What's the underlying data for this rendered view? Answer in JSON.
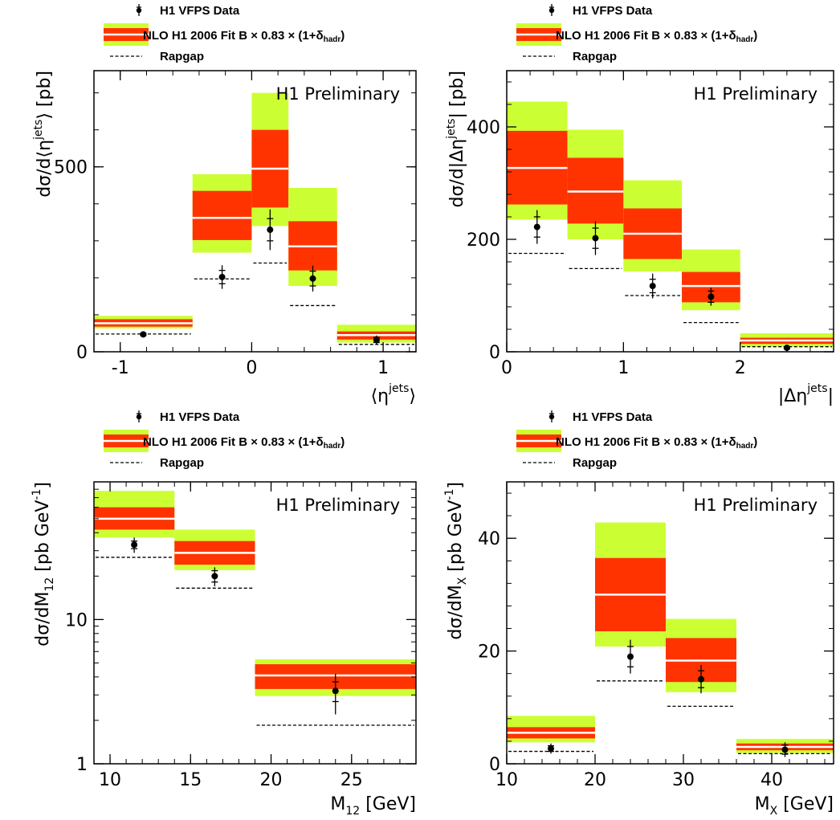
{
  "legend": {
    "data_label": "H1 VFPS Data",
    "nlo_label_main": "NLO H1 2006 Fit B × 0.83 × (1+δ",
    "nlo_label_sub": "hadr",
    "nlo_label_close": ")",
    "rapgap_label": "Rapgap"
  },
  "colors": {
    "scale_band": "#ccff33",
    "pdf_band": "#ff3300",
    "central_line": "#ffffff",
    "data_marker": "#000000"
  },
  "chart_data": [
    {
      "type": "bar",
      "id": "eta-mean",
      "annotation": "H1 Preliminary",
      "ylabel": {
        "main": "dσ/d",
        "left": "⟨η",
        "sup": "jets",
        "right": "⟩ [pb]"
      },
      "xlabel": {
        "left": "⟨η",
        "sup": "jets",
        "right": "⟩"
      },
      "xlim": [
        -1.2,
        1.25
      ],
      "ylim": [
        0,
        760
      ],
      "log_y": false,
      "x_major_ticks": [
        -1,
        0,
        1
      ],
      "y_major_ticks": [
        0,
        500
      ],
      "x_tick_labels": [
        "-1",
        "0",
        "1"
      ],
      "y_tick_labels": [
        "0",
        "500"
      ],
      "bins": [
        {
          "low": -1.2,
          "high": -0.45,
          "nlo": 77,
          "pdf_lo": 68,
          "pdf_hi": 88,
          "scale_lo": 63,
          "scale_hi": 97,
          "rapgap": 48,
          "data": 47,
          "stat": 3,
          "tot": 5
        },
        {
          "low": -0.45,
          "high": 0.0,
          "nlo": 362,
          "pdf_lo": 302,
          "pdf_hi": 435,
          "scale_lo": 268,
          "scale_hi": 480,
          "rapgap": 197,
          "data": 202,
          "stat": 18,
          "tot": 32
        },
        {
          "low": 0.0,
          "high": 0.28,
          "nlo": 495,
          "pdf_lo": 390,
          "pdf_hi": 600,
          "scale_lo": 340,
          "scale_hi": 700,
          "rapgap": 240,
          "data": 330,
          "stat": 30,
          "tot": 55
        },
        {
          "low": 0.28,
          "high": 0.65,
          "nlo": 285,
          "pdf_lo": 220,
          "pdf_hi": 353,
          "scale_lo": 178,
          "scale_hi": 443,
          "rapgap": 125,
          "data": 198,
          "stat": 20,
          "tot": 35
        },
        {
          "low": 0.65,
          "high": 1.25,
          "nlo": 45,
          "pdf_lo": 33,
          "pdf_hi": 55,
          "scale_lo": 25,
          "scale_hi": 73,
          "rapgap": 20,
          "data": 32,
          "stat": 7,
          "tot": 12
        }
      ]
    },
    {
      "type": "bar",
      "id": "delta-eta",
      "annotation": "H1 Preliminary",
      "ylabel": {
        "main": "dσ/d",
        "left": "|Δη",
        "sup": "jets",
        "right": "| [pb]"
      },
      "xlabel": {
        "left": "|Δη",
        "sup": "jets",
        "right": "|"
      },
      "xlim": [
        0,
        2.8
      ],
      "ylim": [
        0,
        500
      ],
      "log_y": false,
      "x_major_ticks": [
        0,
        1,
        2
      ],
      "y_major_ticks": [
        0,
        200,
        400
      ],
      "x_tick_labels": [
        "0",
        "1",
        "2"
      ],
      "y_tick_labels": [
        "0",
        "200",
        "400"
      ],
      "bins": [
        {
          "low": 0.0,
          "high": 0.52,
          "nlo": 327,
          "pdf_lo": 262,
          "pdf_hi": 393,
          "scale_lo": 235,
          "scale_hi": 445,
          "rapgap": 175,
          "data": 222,
          "stat": 18,
          "tot": 30
        },
        {
          "low": 0.52,
          "high": 1.0,
          "nlo": 285,
          "pdf_lo": 228,
          "pdf_hi": 345,
          "scale_lo": 200,
          "scale_hi": 395,
          "rapgap": 148,
          "data": 202,
          "stat": 18,
          "tot": 30
        },
        {
          "low": 1.0,
          "high": 1.5,
          "nlo": 210,
          "pdf_lo": 165,
          "pdf_hi": 255,
          "scale_lo": 143,
          "scale_hi": 305,
          "rapgap": 100,
          "data": 117,
          "stat": 12,
          "tot": 22
        },
        {
          "low": 1.5,
          "high": 2.0,
          "nlo": 117,
          "pdf_lo": 88,
          "pdf_hi": 142,
          "scale_lo": 74,
          "scale_hi": 182,
          "rapgap": 52,
          "data": 98,
          "stat": 10,
          "tot": 16
        },
        {
          "low": 2.0,
          "high": 2.8,
          "nlo": 20,
          "pdf_lo": 14,
          "pdf_hi": 25,
          "scale_lo": 9,
          "scale_hi": 33,
          "rapgap": 9,
          "data": 7,
          "stat": 2,
          "tot": 3
        }
      ]
    },
    {
      "type": "bar",
      "id": "m12",
      "annotation": "H1 Preliminary",
      "ylabel": {
        "main": "dσ/dM",
        "sub": "12",
        "tail": " [pb GeV",
        "sup": "-1",
        "close": "]"
      },
      "xlabel": {
        "main": "M",
        "sub": "12",
        "tail": " [GeV]"
      },
      "xlim": [
        9,
        29
      ],
      "ylim": [
        1,
        90
      ],
      "log_y": true,
      "x_major_ticks": [
        10,
        15,
        20,
        25
      ],
      "y_major_ticks": [
        1,
        10
      ],
      "x_tick_labels": [
        "10",
        "15",
        "20",
        "25"
      ],
      "y_tick_labels": [
        "1",
        "10"
      ],
      "bins": [
        {
          "low": 9,
          "high": 14,
          "nlo": 50,
          "pdf_lo": 42,
          "pdf_hi": 60,
          "scale_lo": 37,
          "scale_hi": 78,
          "rapgap": 27,
          "data": 33,
          "stat": 2,
          "tot": 4
        },
        {
          "low": 14,
          "high": 19,
          "nlo": 29,
          "pdf_lo": 24,
          "pdf_hi": 35,
          "scale_lo": 22,
          "scale_hi": 42,
          "rapgap": 16.5,
          "data": 20,
          "stat": 1.8,
          "tot": 3
        },
        {
          "low": 19,
          "high": 29,
          "nlo": 4.1,
          "pdf_lo": 3.3,
          "pdf_hi": 4.9,
          "scale_lo": 2.95,
          "scale_hi": 5.3,
          "rapgap": 1.85,
          "data": 3.2,
          "stat": 0.5,
          "tot": 1.0
        }
      ]
    },
    {
      "type": "bar",
      "id": "mx",
      "annotation": "H1 Preliminary",
      "ylabel": {
        "main": "dσ/dM",
        "sub": "X",
        "tail": " [pb GeV",
        "sup": "-1",
        "close": "]"
      },
      "xlabel": {
        "main": "M",
        "sub": "X",
        "tail": " [GeV]"
      },
      "xlim": [
        10,
        47
      ],
      "ylim": [
        0,
        50
      ],
      "log_y": false,
      "x_major_ticks": [
        10,
        20,
        30,
        40
      ],
      "y_major_ticks": [
        0,
        20,
        40
      ],
      "x_tick_labels": [
        "10",
        "20",
        "30",
        "40"
      ],
      "y_tick_labels": [
        "0",
        "20",
        "40"
      ],
      "bins": [
        {
          "low": 10,
          "high": 20,
          "nlo": 5.5,
          "pdf_lo": 4.5,
          "pdf_hi": 6.5,
          "scale_lo": 3.8,
          "scale_hi": 8.5,
          "rapgap": 2.2,
          "data": 2.7,
          "stat": 0.5,
          "tot": 0.9
        },
        {
          "low": 20,
          "high": 28,
          "nlo": 30,
          "pdf_lo": 23.5,
          "pdf_hi": 36.5,
          "scale_lo": 20.8,
          "scale_hi": 42.8,
          "rapgap": 14.7,
          "data": 19,
          "stat": 1.8,
          "tot": 3
        },
        {
          "low": 28,
          "high": 36,
          "nlo": 18.3,
          "pdf_lo": 14.5,
          "pdf_hi": 22.3,
          "scale_lo": 12.7,
          "scale_hi": 25.7,
          "rapgap": 10.2,
          "data": 15,
          "stat": 1.5,
          "tot": 2.5
        },
        {
          "low": 36,
          "high": 47,
          "nlo": 3.0,
          "pdf_lo": 2.4,
          "pdf_hi": 3.6,
          "scale_lo": 1.9,
          "scale_hi": 4.4,
          "rapgap": 1.8,
          "data": 2.5,
          "stat": 0.8,
          "tot": 1.3
        }
      ]
    }
  ]
}
